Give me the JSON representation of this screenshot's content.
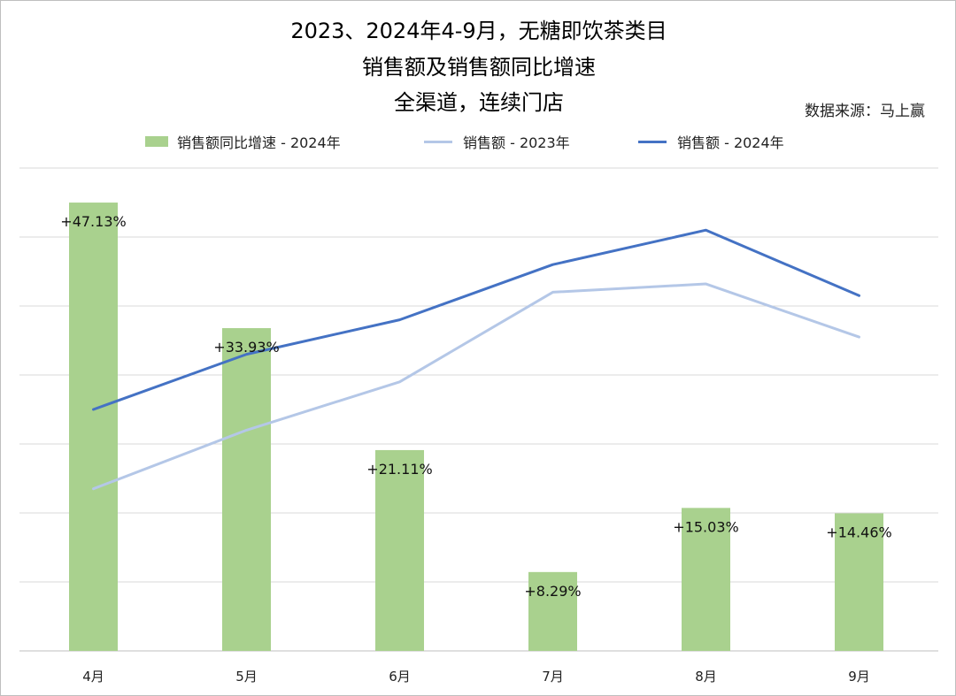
{
  "chart_data": {
    "type": "bar",
    "title_lines": [
      "2023、2024年4-9月，无糖即饮茶类目",
      "销售额及销售额同比增速",
      "全渠道，连续门店"
    ],
    "source": "数据来源：马上赢",
    "categories": [
      "4月",
      "5月",
      "6月",
      "7月",
      "8月",
      "9月"
    ],
    "series": [
      {
        "name": "销售额同比增速 - 2024年",
        "kind": "bar",
        "color": "#a9d18e",
        "values": [
          47.13,
          33.93,
          21.11,
          8.29,
          15.03,
          14.46
        ],
        "labels": [
          "+47.13%",
          "+33.93%",
          "+21.11%",
          "+8.29%",
          "+15.03%",
          "+14.46%"
        ]
      },
      {
        "name": "销售额 - 2023年",
        "kind": "line",
        "color": "#b4c7e7",
        "values": [
          23.5,
          32,
          39,
          52,
          53.2,
          45.5
        ]
      },
      {
        "name": "销售额 - 2024年",
        "kind": "line",
        "color": "#4472c4",
        "values": [
          35,
          43,
          48,
          56,
          61,
          51.5
        ]
      }
    ],
    "ylim": [
      0,
      70
    ],
    "grid": true,
    "legend_position": "top"
  }
}
